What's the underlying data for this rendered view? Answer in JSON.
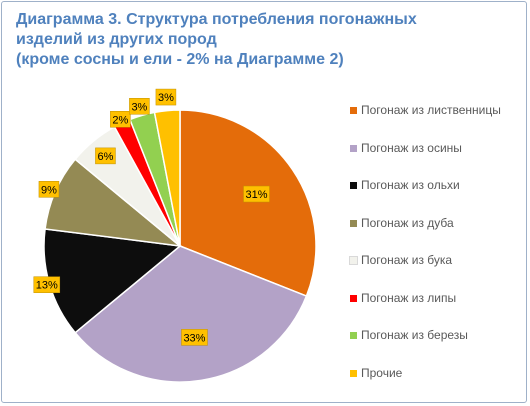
{
  "chart_data": {
    "type": "pie",
    "title_lines": [
      "Диаграмма 3. Структура потребления погонажных",
      "изделий из других пород",
      "(кроме сосны и ели - 2% на Диаграмме 2)"
    ],
    "slices": [
      {
        "label": "Погонаж из лиственницы",
        "value": 31,
        "value_label": "31%",
        "color": "#e46c0a"
      },
      {
        "label": "Погонаж из осины",
        "value": 33,
        "value_label": "33%",
        "color": "#b3a2c7"
      },
      {
        "label": "Погонаж из ольхи",
        "value": 13,
        "value_label": "13%",
        "color": "#0d0d0d"
      },
      {
        "label": "Погонаж из дуба",
        "value": 9,
        "value_label": "9%",
        "color": "#948a54"
      },
      {
        "label": "Погонаж из бука",
        "value": 6,
        "value_label": "6%",
        "color": "#f2f2ec"
      },
      {
        "label": "Погонаж из липы",
        "value": 2,
        "value_label": "2%",
        "color": "#ff0000"
      },
      {
        "label": "Погонаж из березы",
        "value": 3,
        "value_label": "3%",
        "color": "#92d050"
      },
      {
        "label": "Прочие",
        "value": 3,
        "value_label": "3%",
        "color": "#ffc000"
      }
    ],
    "start_angle_deg": 0,
    "direction": "clockwise",
    "legend_position": "right",
    "label_box_color": "#ffc000",
    "slice_border_color": "#ffffff"
  }
}
